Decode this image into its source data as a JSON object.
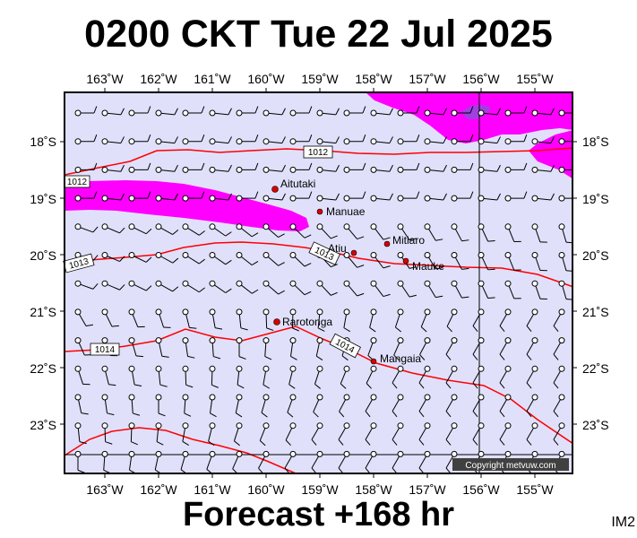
{
  "title": "0200 CKT Tue 22 Jul 2025",
  "footer": "Forecast +168 hr",
  "image_tag": "IM2",
  "credit": "Copyright metvuw.com",
  "colors": {
    "background": "#e0e0fb",
    "frame": "#000000",
    "isobar": "#ff0000",
    "rain": "#ff00ff",
    "rain_heavy": "#a040e0",
    "town": "#d80000"
  },
  "axes": {
    "lon_labels": [
      "163˚W",
      "162˚W",
      "161˚W",
      "160˚W",
      "159˚W",
      "158˚W",
      "157˚W",
      "156˚W",
      "155˚W"
    ],
    "lat_labels": [
      "18˚S",
      "19˚S",
      "20˚S",
      "21˚S",
      "22˚S",
      "23˚S"
    ]
  },
  "places": [
    {
      "name": "Aitutaki"
    },
    {
      "name": "Manuae"
    },
    {
      "name": "Mitiaro"
    },
    {
      "name": "Atiu"
    },
    {
      "name": "Mauke"
    },
    {
      "name": "Rarotonga"
    },
    {
      "name": "Mangaia"
    }
  ],
  "isobar_labels": [
    "1012",
    "1012",
    "1013",
    "1013",
    "1014",
    "1014"
  ]
}
